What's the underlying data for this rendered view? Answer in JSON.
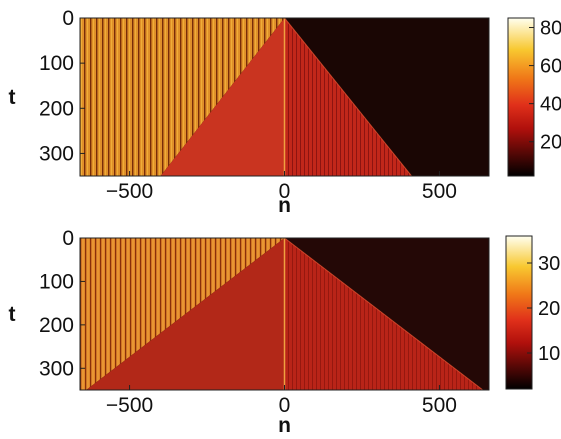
{
  "chart_data": [
    {
      "type": "heatmap",
      "xlabel": "n",
      "ylabel": "t",
      "xlim": [
        -660,
        660
      ],
      "ylim": [
        350,
        0
      ],
      "x_ticks": [
        -500,
        0,
        500
      ],
      "x_tick_labels": [
        "−500",
        "0",
        "500"
      ],
      "y_ticks": [
        0,
        100,
        200,
        300
      ],
      "y_tick_labels": [
        "0",
        "100",
        "200",
        "300"
      ],
      "colorbar": {
        "range": [
          2,
          85
        ],
        "ticks": [
          20,
          40,
          60,
          80
        ],
        "tick_labels": [
          "20",
          "40",
          "60",
          "80"
        ],
        "colormap": "hot"
      },
      "regions": [
        {
          "description": "striped orange region, n < 0 ahead of front",
          "value_approx": 55
        },
        {
          "description": "wedge region between fronts",
          "value_approx": 30
        },
        {
          "description": "dark region, n > 0 ahead of front",
          "value_approx": 5
        }
      ],
      "front_left_endpoint": {
        "n": -400,
        "t": 350
      },
      "front_right_endpoint": {
        "n": 410,
        "t": 350
      }
    },
    {
      "type": "heatmap",
      "xlabel": "n",
      "ylabel": "t",
      "xlim": [
        -660,
        660
      ],
      "ylim": [
        350,
        0
      ],
      "x_ticks": [
        -500,
        0,
        500
      ],
      "x_tick_labels": [
        "−500",
        "0",
        "500"
      ],
      "y_ticks": [
        0,
        100,
        200,
        300
      ],
      "y_tick_labels": [
        "0",
        "100",
        "200",
        "300"
      ],
      "colorbar": {
        "range": [
          2,
          36
        ],
        "ticks": [
          10,
          20,
          30
        ],
        "tick_labels": [
          "10",
          "20",
          "30"
        ],
        "colormap": "hot"
      },
      "regions": [
        {
          "description": "striped orange region, n < 0 ahead of front",
          "value_approx": 24
        },
        {
          "description": "wedge region between fronts",
          "value_approx": 14
        },
        {
          "description": "dark region, n > 0 ahead of front",
          "value_approx": 4
        }
      ],
      "front_left_endpoint": {
        "n": -640,
        "t": 350
      },
      "front_right_endpoint": {
        "n": 640,
        "t": 350
      }
    }
  ]
}
